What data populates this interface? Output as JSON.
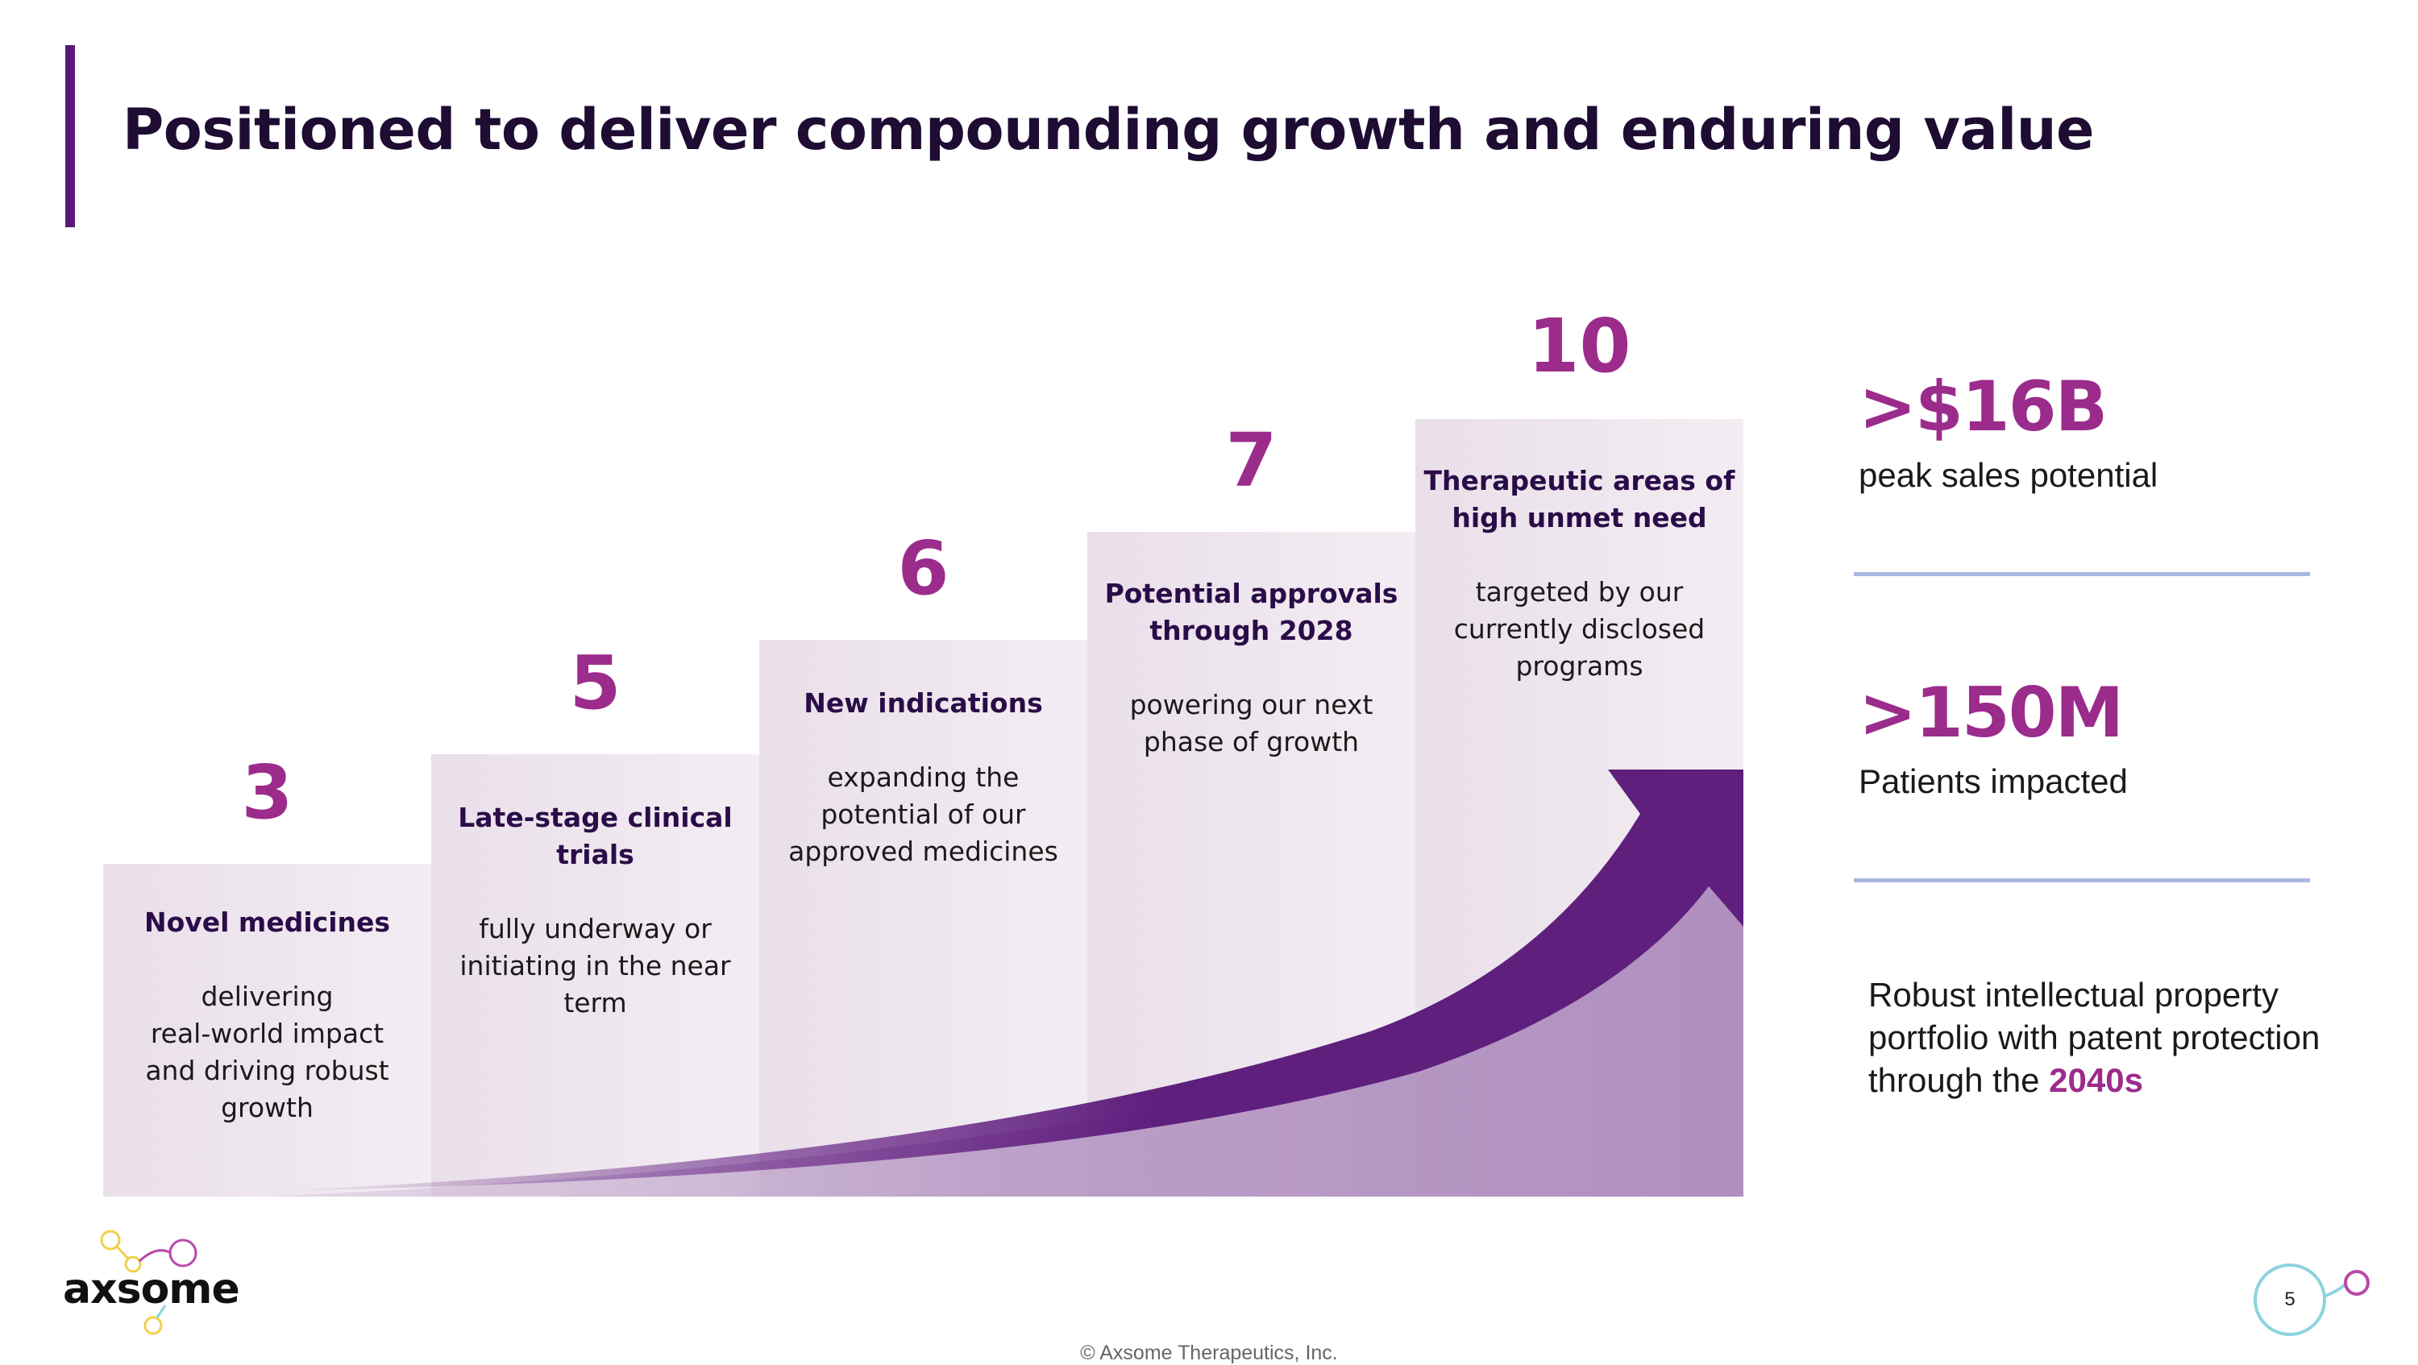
{
  "title": "Positioned to deliver compounding growth and enduring value",
  "steps": [
    {
      "number": "3",
      "head_lines": [
        "Novel medicines"
      ],
      "body_lines": [
        "delivering",
        "real-world impact",
        "and driving robust",
        "growth"
      ]
    },
    {
      "number": "5",
      "head_lines": [
        "Late-stage clinical",
        "trials"
      ],
      "body_lines": [
        "fully underway or",
        "initiating in the near",
        "term"
      ]
    },
    {
      "number": "6",
      "head_lines": [
        "New indications"
      ],
      "body_lines": [
        "expanding the",
        "potential of our",
        "approved medicines"
      ]
    },
    {
      "number": "7",
      "head_lines": [
        "Potential approvals",
        "through 2028"
      ],
      "body_lines": [
        "powering our next",
        "phase of growth"
      ]
    },
    {
      "number": "10",
      "head_lines": [
        "Therapeutic areas of",
        "high unmet need"
      ],
      "body_lines": [
        "targeted by our",
        "currently disclosed",
        "programs"
      ]
    }
  ],
  "stats": [
    {
      "value": ">$16B",
      "label": "peak sales potential"
    },
    {
      "value": ">150M",
      "label": "Patients impacted"
    }
  ],
  "ip": {
    "text_before": "Robust intellectual property portfolio with patent protection through the ",
    "highlight": "2040s"
  },
  "logo": {
    "text": "axsome",
    "icon": "molecule-logo-icon"
  },
  "footer": "© Axsome Therapeutics, Inc.",
  "page_number": "5",
  "colors": {
    "accent": "#9b2c8c",
    "title": "#1e0c33",
    "arrow": "#5e1f7d",
    "divider": "#a9b8e2"
  }
}
